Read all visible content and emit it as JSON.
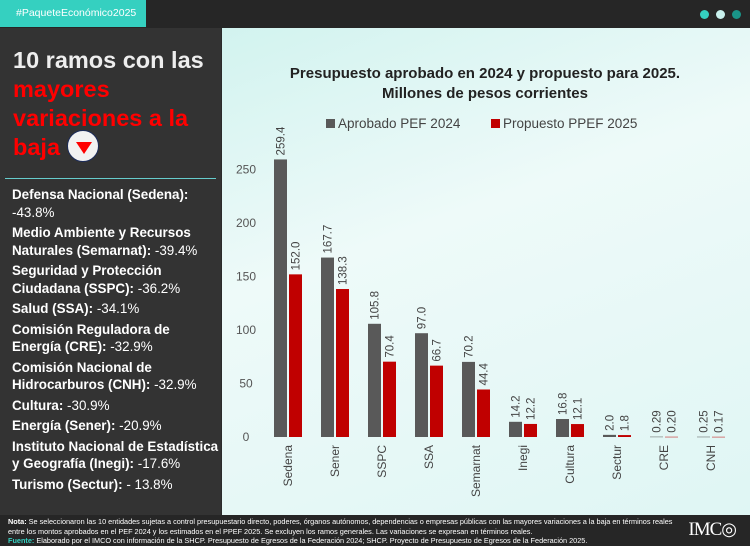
{
  "header": {
    "tag": "#PaqueteEconómico2025",
    "dots": [
      "#35d0c0",
      "#c8f0ec",
      "#1a9488"
    ]
  },
  "left": {
    "title_part1": "10 ramos con las ",
    "title_highlight": "mayores variaciones a la baja",
    "items": [
      {
        "name": "Defensa Nacional (Sedena):",
        "value": " -43.8%"
      },
      {
        "name": "Medio Ambiente y Recursos Naturales (Semarnat):",
        "value": " -39.4%"
      },
      {
        "name": "Seguridad y Protección Ciudadana (SSPC):",
        "value": " -36.2%"
      },
      {
        "name": "Salud (SSA):",
        "value": " -34.1%"
      },
      {
        "name": "Comisión Reguladora de Energía (CRE):",
        "value": " -32.9%"
      },
      {
        "name": "Comisión Nacional de Hidrocarburos (CNH):",
        "value": " -32.9%"
      },
      {
        "name": "Cultura:",
        "value": " -30.9%"
      },
      {
        "name": "Energía (Sener):",
        "value": " -20.9%"
      },
      {
        "name": "Instituto Nacional de Estadística y Geografía (Inegi):",
        "value": " -17.6%"
      },
      {
        "name": "Turismo (Sectur):",
        "value": " - 13.8%"
      }
    ]
  },
  "chart_data": {
    "type": "bar",
    "title": "Presupuesto aprobado en 2024 y propuesto para 2025.",
    "subtitle": "Millones de pesos corrientes",
    "categories": [
      "Sedena",
      "Sener",
      "SSPC",
      "SSA",
      "Semarnat",
      "Inegi",
      "Cultura",
      "Sectur",
      "CRE",
      "CNH"
    ],
    "series": [
      {
        "name": "Aprobado PEF 2024",
        "color": "#595959",
        "values": [
          259.4,
          167.7,
          105.8,
          97.0,
          70.2,
          14.2,
          16.8,
          2.0,
          0.29,
          0.25
        ],
        "labels": [
          "259.4",
          "167.7",
          "105.8",
          "97.0",
          "70.2",
          "14.2",
          "16.8",
          "2.0",
          "0.29",
          "0.25"
        ]
      },
      {
        "name": "Propuesto PPEF 2025",
        "color": "#c00000",
        "values": [
          152.0,
          138.3,
          70.4,
          66.7,
          44.4,
          12.2,
          12.1,
          1.8,
          0.2,
          0.17
        ],
        "labels": [
          "152.0",
          "138.3",
          "70.4",
          "66.7",
          "44.4",
          "12.2",
          "12.1",
          "1.8",
          "0.20",
          "0.17"
        ]
      }
    ],
    "yticks": [
      "0",
      "50",
      "100",
      "150",
      "200",
      "250"
    ],
    "ylim": [
      0,
      260
    ],
    "legend": "top",
    "grid": false
  },
  "footer": {
    "note_label": "Nota:",
    "note": " Se seleccionaron las 10 entidades sujetas a control presupuestario directo, poderes, órganos autónomos, dependencias o empresas públicas con las mayores variaciones a la baja en términos reales entre los montos aprobados en el PEF 2024 y los estimados en el PPEF 2025. Se excluyen los ramos generales. Las variaciones se expresan en términos reales.",
    "source_label": "Fuente:",
    "source": " Elaborado por el IMCO con información de la SHCP. Presupuesto de Egresos de la Federación 2024; SHCP. Proyecto de Presupuesto de Egresos de la Federación 2025.",
    "logo": "IMCO"
  }
}
